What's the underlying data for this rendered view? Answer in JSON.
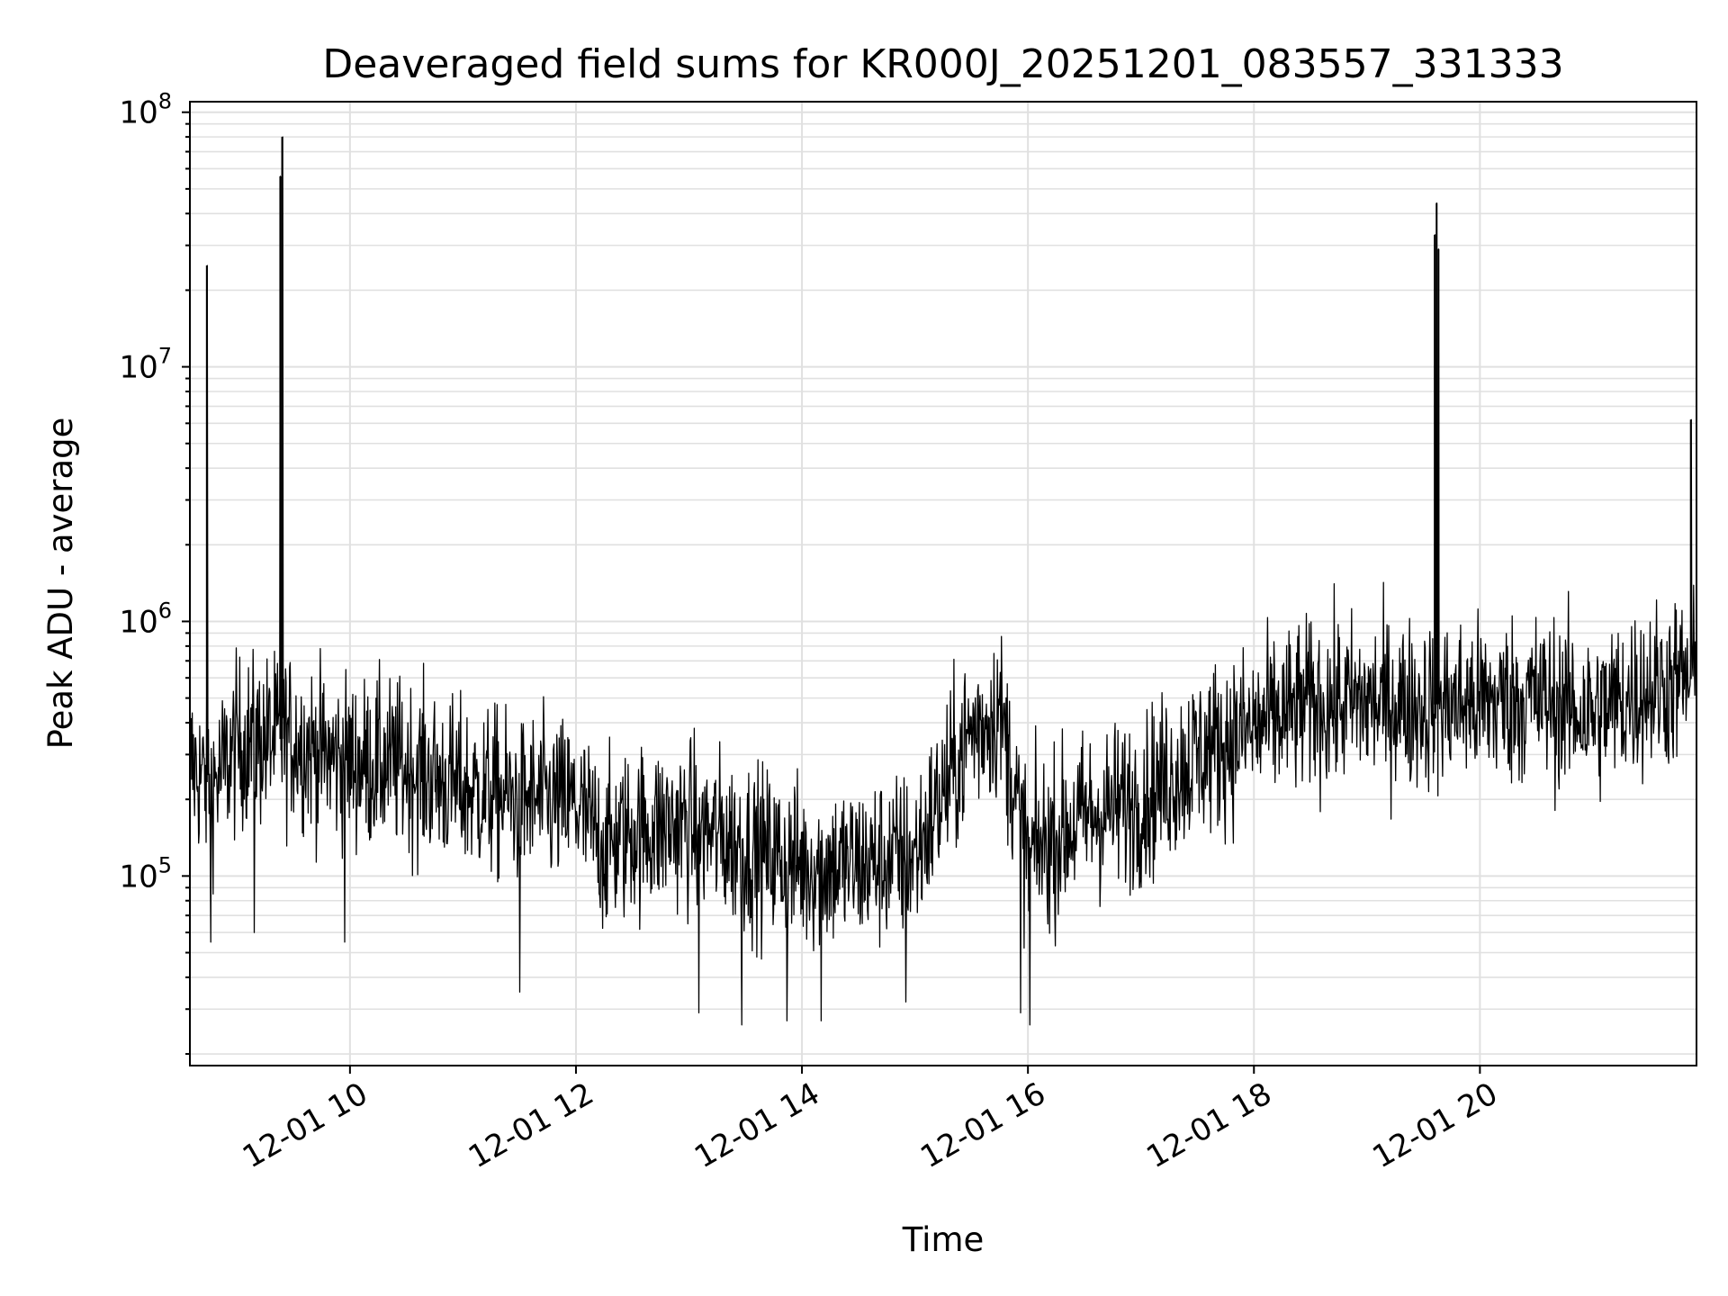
{
  "chart_data": {
    "type": "line",
    "title": "Deaveraged field sums for KR000J_20251201_083557_331333",
    "xlabel": "Time",
    "ylabel": "Peak ADU - average",
    "x_ticks": [
      "12-01 10",
      "12-01 12",
      "12-01 14",
      "12-01 16",
      "12-01 18",
      "12-01 20"
    ],
    "y_ticks": [
      {
        "base": "10",
        "exp": "5",
        "value": 100000
      },
      {
        "base": "10",
        "exp": "6",
        "value": 1000000
      },
      {
        "base": "10",
        "exp": "7",
        "value": 10000000
      },
      {
        "base": "10",
        "exp": "8",
        "value": 100000000
      }
    ],
    "xlim": [
      "2025-12-01T08:35",
      "2025-12-01T21:55"
    ],
    "ylim": [
      18000,
      110000000
    ],
    "yscale": "log",
    "grid": true,
    "line_color": "#000000",
    "grid_color": "#e0e0e0",
    "series": [
      {
        "x": [
          "2025-12-01T08:35",
          "2025-12-01T08:40",
          "2025-12-01T08:45",
          "2025-12-01T08:50",
          "2025-12-01T09:00",
          "2025-12-01T09:15",
          "2025-12-01T09:30",
          "2025-12-01T09:45",
          "2025-12-01T10:00",
          "2025-12-01T10:30",
          "2025-12-01T11:00",
          "2025-12-01T11:30",
          "2025-12-01T12:00",
          "2025-12-01T12:15",
          "2025-12-01T12:30",
          "2025-12-01T13:00",
          "2025-12-01T13:30",
          "2025-12-01T14:00",
          "2025-12-01T14:30",
          "2025-12-01T15:00",
          "2025-12-01T15:30",
          "2025-12-01T15:45",
          "2025-12-01T16:00",
          "2025-12-01T16:30",
          "2025-12-01T17:00",
          "2025-12-01T17:30",
          "2025-12-01T18:00",
          "2025-12-01T18:30",
          "2025-12-01T19:00",
          "2025-12-01T19:30",
          "2025-12-01T20:00",
          "2025-12-01T20:30",
          "2025-12-01T21:00",
          "2025-12-01T21:30",
          "2025-12-01T21:55"
        ],
        "y": [
          280000,
          250000,
          230000,
          240000,
          330000,
          340000,
          350000,
          300000,
          280000,
          270000,
          220000,
          200000,
          190000,
          130000,
          150000,
          160000,
          130000,
          110000,
          110000,
          120000,
          370000,
          450000,
          120000,
          170000,
          200000,
          300000,
          380000,
          470000,
          480000,
          470000,
          480000,
          500000,
          430000,
          550000,
          600000
        ]
      }
    ],
    "spikes": [
      {
        "x": "2025-12-01T08:44",
        "y": 25000000
      },
      {
        "x": "2025-12-01T09:23",
        "y": 56000000
      },
      {
        "x": "2025-12-01T09:24",
        "y": 80000000
      },
      {
        "x": "2025-12-01T19:36",
        "y": 33000000
      },
      {
        "x": "2025-12-01T19:37",
        "y": 44000000
      },
      {
        "x": "2025-12-01T19:38",
        "y": 29000000
      },
      {
        "x": "2025-12-01T21:52",
        "y": 6200000
      }
    ],
    "dips": [
      {
        "x": "2025-12-01T08:46",
        "y": 55000
      },
      {
        "x": "2025-12-01T09:09",
        "y": 60000
      },
      {
        "x": "2025-12-01T09:57",
        "y": 55000
      },
      {
        "x": "2025-12-01T11:30",
        "y": 35000
      },
      {
        "x": "2025-12-01T13:05",
        "y": 29000
      },
      {
        "x": "2025-12-01T13:28",
        "y": 26000
      },
      {
        "x": "2025-12-01T13:52",
        "y": 27000
      },
      {
        "x": "2025-12-01T14:10",
        "y": 27000
      },
      {
        "x": "2025-12-01T14:55",
        "y": 32000
      },
      {
        "x": "2025-12-01T15:56",
        "y": 29000
      },
      {
        "x": "2025-12-01T16:01",
        "y": 26000
      }
    ]
  }
}
